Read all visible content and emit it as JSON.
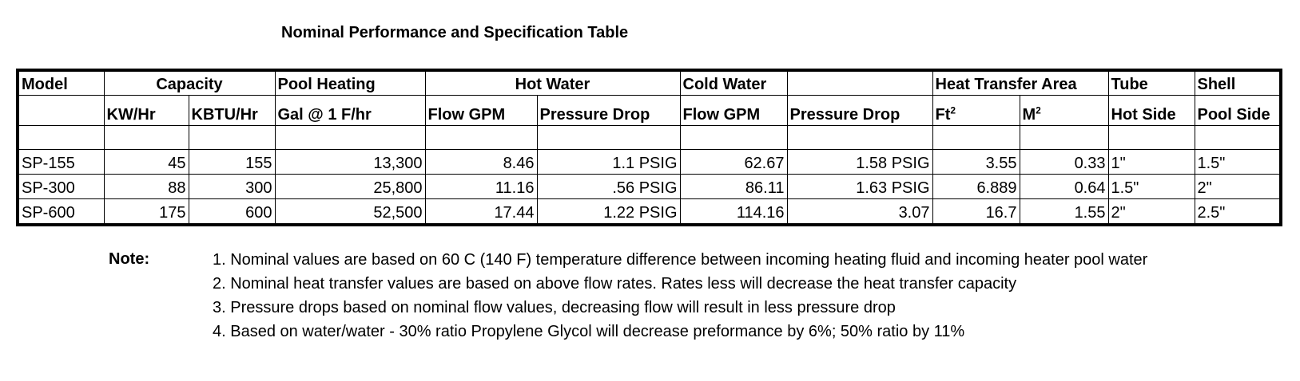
{
  "title": "Nominal Performance and Specification Table",
  "table": {
    "group_headers": [
      "Model",
      "Capacity",
      "Pool Heating",
      "Hot Water",
      "Cold Water",
      "",
      "Heat Transfer Area",
      "Tube",
      "Shell"
    ],
    "sub_headers": [
      "",
      "KW/Hr",
      "KBTU/Hr",
      "Gal @ 1 F/hr",
      "Flow GPM",
      "Pressure Drop",
      "Flow GPM",
      "Pressure Drop",
      "Ft",
      "M",
      "Hot Side",
      "Pool Side"
    ],
    "area_superscript": "2",
    "rows": [
      [
        "SP-155",
        "45",
        "155",
        "13,300",
        "8.46",
        "1.1 PSIG",
        "62.67",
        "1.58 PSIG",
        "3.55",
        "0.33",
        "1\"",
        "1.5\""
      ],
      [
        "SP-300",
        "88",
        "300",
        "25,800",
        "11.16",
        ".56 PSIG",
        "86.11",
        "1.63 PSIG",
        "6.889",
        "0.64",
        "1.5\"",
        "2\""
      ],
      [
        "SP-600",
        "175",
        "600",
        "52,500",
        "17.44",
        "1.22 PSIG",
        "114.16",
        "3.07",
        "16.7",
        "1.55",
        "2\"",
        "2.5\""
      ]
    ]
  },
  "notes": {
    "label": "Note:",
    "lines": [
      "1. Nominal values are based on 60 C (140 F) temperature difference between incoming heating fluid  and incoming  heater pool water",
      "2. Nominal heat transfer values are based on above flow rates.  Rates less will decrease the heat transfer capacity",
      "3. Pressure drops based on nominal flow values, decreasing flow will result in less pressure drop",
      "4. Based on water/water - 30%  ratio Propylene Glycol will decrease preformance by 6%; 50% ratio  by 11%"
    ]
  }
}
